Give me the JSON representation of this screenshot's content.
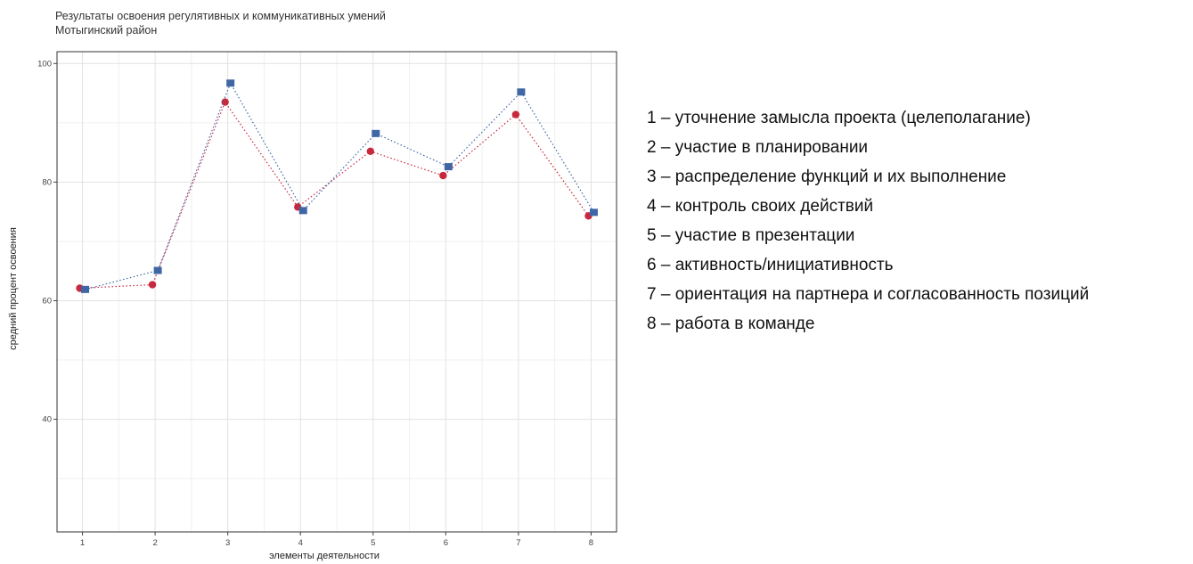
{
  "chart_data": {
    "type": "scatter",
    "title": "Результаты освоения регулятивных и коммуникативных умений",
    "subtitle": "Мотыгинский район",
    "xlabel": "элементы деятельности",
    "ylabel": "средний процент освоения",
    "x": [
      1,
      2,
      3,
      4,
      5,
      6,
      7,
      8
    ],
    "x_ticks": [
      "1",
      "2",
      "3",
      "4",
      "5",
      "6",
      "7",
      "8"
    ],
    "y_ticks": [
      "40",
      "60",
      "80",
      "100"
    ],
    "xlim": [
      0.65,
      8.35
    ],
    "ylim": [
      21,
      102
    ],
    "grid": true,
    "series": [
      {
        "marker": "circle",
        "color": "#c8283e",
        "values": [
          62.1,
          62.7,
          93.5,
          75.8,
          85.2,
          81.1,
          91.4,
          74.3
        ]
      },
      {
        "marker": "square",
        "color": "#3f67a5",
        "values": [
          61.9,
          65.1,
          96.7,
          75.2,
          88.2,
          82.6,
          95.2,
          74.9
        ]
      }
    ],
    "line_style": "dotted",
    "legend_items": [
      "1 – уточнение замысла проекта (целеполагание)",
      "2 – участие в планировании",
      "3 – распределение функций и их выполнение",
      "4 – контроль своих действий",
      "5 – участие в презентации",
      "6 – активность/инициативность",
      "7 – ориентация на партнера и согласованность позиций",
      "8 – работа в команде"
    ]
  }
}
